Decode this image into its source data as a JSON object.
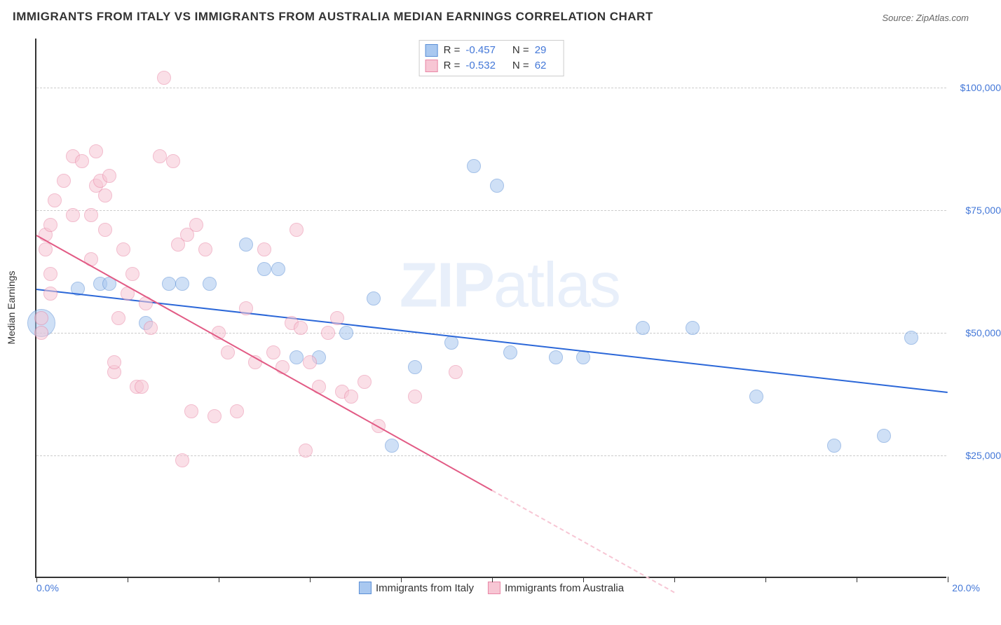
{
  "title": "IMMIGRANTS FROM ITALY VS IMMIGRANTS FROM AUSTRALIA MEDIAN EARNINGS CORRELATION CHART",
  "source": "Source: ZipAtlas.com",
  "watermark_a": "ZIP",
  "watermark_b": "atlas",
  "chart": {
    "type": "scatter",
    "x_axis": {
      "min": 0.0,
      "max": 20.0,
      "label_min": "0.0%",
      "label_max": "20.0%",
      "tick_step": 2.0
    },
    "y_axis": {
      "title": "Median Earnings",
      "min": 0,
      "max": 110000,
      "ticks": [
        25000,
        50000,
        75000,
        100000
      ],
      "tick_labels": [
        "$25,000",
        "$50,000",
        "$75,000",
        "$100,000"
      ]
    },
    "background_color": "#ffffff",
    "grid_color": "#cccccc",
    "label_color": "#4478d8",
    "marker_radius": 10,
    "marker_opacity": 0.55,
    "series": [
      {
        "name": "Immigrants from Italy",
        "color_fill": "#a9c8f0",
        "color_stroke": "#5b8fd6",
        "r_label": "R =",
        "r_value": "-0.457",
        "n_label": "N =",
        "n_value": "29",
        "trend": {
          "x1": 0.0,
          "y1": 59000,
          "x2": 20.0,
          "y2": 38000,
          "color": "#2b67d8"
        },
        "points": [
          {
            "x": 0.1,
            "y": 52000,
            "r": 20
          },
          {
            "x": 0.9,
            "y": 59000
          },
          {
            "x": 1.4,
            "y": 60000
          },
          {
            "x": 1.6,
            "y": 60000
          },
          {
            "x": 2.4,
            "y": 52000
          },
          {
            "x": 2.9,
            "y": 60000
          },
          {
            "x": 3.2,
            "y": 60000
          },
          {
            "x": 3.8,
            "y": 60000
          },
          {
            "x": 4.6,
            "y": 68000
          },
          {
            "x": 5.0,
            "y": 63000
          },
          {
            "x": 5.3,
            "y": 63000
          },
          {
            "x": 5.7,
            "y": 45000
          },
          {
            "x": 6.2,
            "y": 45000
          },
          {
            "x": 6.8,
            "y": 50000
          },
          {
            "x": 7.4,
            "y": 57000
          },
          {
            "x": 7.8,
            "y": 27000
          },
          {
            "x": 8.3,
            "y": 43000
          },
          {
            "x": 9.1,
            "y": 48000
          },
          {
            "x": 9.6,
            "y": 84000
          },
          {
            "x": 10.1,
            "y": 80000
          },
          {
            "x": 10.4,
            "y": 46000
          },
          {
            "x": 11.4,
            "y": 45000
          },
          {
            "x": 12.0,
            "y": 45000
          },
          {
            "x": 13.3,
            "y": 51000
          },
          {
            "x": 14.4,
            "y": 51000
          },
          {
            "x": 15.8,
            "y": 37000
          },
          {
            "x": 17.5,
            "y": 27000
          },
          {
            "x": 18.6,
            "y": 29000
          },
          {
            "x": 19.2,
            "y": 49000
          }
        ]
      },
      {
        "name": "Immigrants from Australia",
        "color_fill": "#f7c6d4",
        "color_stroke": "#e987a6",
        "r_label": "R =",
        "r_value": "-0.532",
        "n_label": "N =",
        "n_value": "62",
        "trend": {
          "x1": 0.0,
          "y1": 70000,
          "x2": 10.0,
          "y2": 18000,
          "extend_x": 14.0,
          "color": "#e25b85"
        },
        "points": [
          {
            "x": 0.2,
            "y": 70000
          },
          {
            "x": 0.2,
            "y": 67000
          },
          {
            "x": 0.3,
            "y": 72000
          },
          {
            "x": 0.3,
            "y": 62000
          },
          {
            "x": 0.3,
            "y": 58000
          },
          {
            "x": 0.1,
            "y": 53000
          },
          {
            "x": 0.1,
            "y": 50000
          },
          {
            "x": 0.4,
            "y": 77000
          },
          {
            "x": 0.6,
            "y": 81000
          },
          {
            "x": 0.8,
            "y": 74000
          },
          {
            "x": 0.8,
            "y": 86000
          },
          {
            "x": 1.0,
            "y": 85000
          },
          {
            "x": 1.2,
            "y": 74000
          },
          {
            "x": 1.2,
            "y": 65000
          },
          {
            "x": 1.3,
            "y": 87000
          },
          {
            "x": 1.3,
            "y": 80000
          },
          {
            "x": 1.4,
            "y": 81000
          },
          {
            "x": 1.5,
            "y": 71000
          },
          {
            "x": 1.5,
            "y": 78000
          },
          {
            "x": 1.6,
            "y": 82000
          },
          {
            "x": 1.7,
            "y": 42000
          },
          {
            "x": 1.7,
            "y": 44000
          },
          {
            "x": 1.8,
            "y": 53000
          },
          {
            "x": 1.9,
            "y": 67000
          },
          {
            "x": 2.0,
            "y": 58000
          },
          {
            "x": 2.1,
            "y": 62000
          },
          {
            "x": 2.2,
            "y": 39000
          },
          {
            "x": 2.3,
            "y": 39000
          },
          {
            "x": 2.4,
            "y": 56000
          },
          {
            "x": 2.5,
            "y": 51000
          },
          {
            "x": 2.7,
            "y": 86000
          },
          {
            "x": 2.8,
            "y": 102000
          },
          {
            "x": 3.0,
            "y": 85000
          },
          {
            "x": 3.1,
            "y": 68000
          },
          {
            "x": 3.2,
            "y": 24000
          },
          {
            "x": 3.3,
            "y": 70000
          },
          {
            "x": 3.4,
            "y": 34000
          },
          {
            "x": 3.5,
            "y": 72000
          },
          {
            "x": 3.7,
            "y": 67000
          },
          {
            "x": 3.9,
            "y": 33000
          },
          {
            "x": 4.0,
            "y": 50000
          },
          {
            "x": 4.2,
            "y": 46000
          },
          {
            "x": 4.4,
            "y": 34000
          },
          {
            "x": 4.6,
            "y": 55000
          },
          {
            "x": 4.8,
            "y": 44000
          },
          {
            "x": 5.0,
            "y": 67000
          },
          {
            "x": 5.2,
            "y": 46000
          },
          {
            "x": 5.4,
            "y": 43000
          },
          {
            "x": 5.6,
            "y": 52000
          },
          {
            "x": 5.7,
            "y": 71000
          },
          {
            "x": 5.8,
            "y": 51000
          },
          {
            "x": 5.9,
            "y": 26000
          },
          {
            "x": 6.0,
            "y": 44000
          },
          {
            "x": 6.2,
            "y": 39000
          },
          {
            "x": 6.4,
            "y": 50000
          },
          {
            "x": 6.6,
            "y": 53000
          },
          {
            "x": 6.7,
            "y": 38000
          },
          {
            "x": 6.9,
            "y": 37000
          },
          {
            "x": 7.2,
            "y": 40000
          },
          {
            "x": 7.5,
            "y": 31000
          },
          {
            "x": 8.3,
            "y": 37000
          },
          {
            "x": 9.2,
            "y": 42000
          }
        ]
      }
    ],
    "legend": [
      {
        "label": "Immigrants from Italy",
        "fill": "#a9c8f0",
        "stroke": "#5b8fd6"
      },
      {
        "label": "Immigrants from Australia",
        "fill": "#f7c6d4",
        "stroke": "#e987a6"
      }
    ]
  }
}
